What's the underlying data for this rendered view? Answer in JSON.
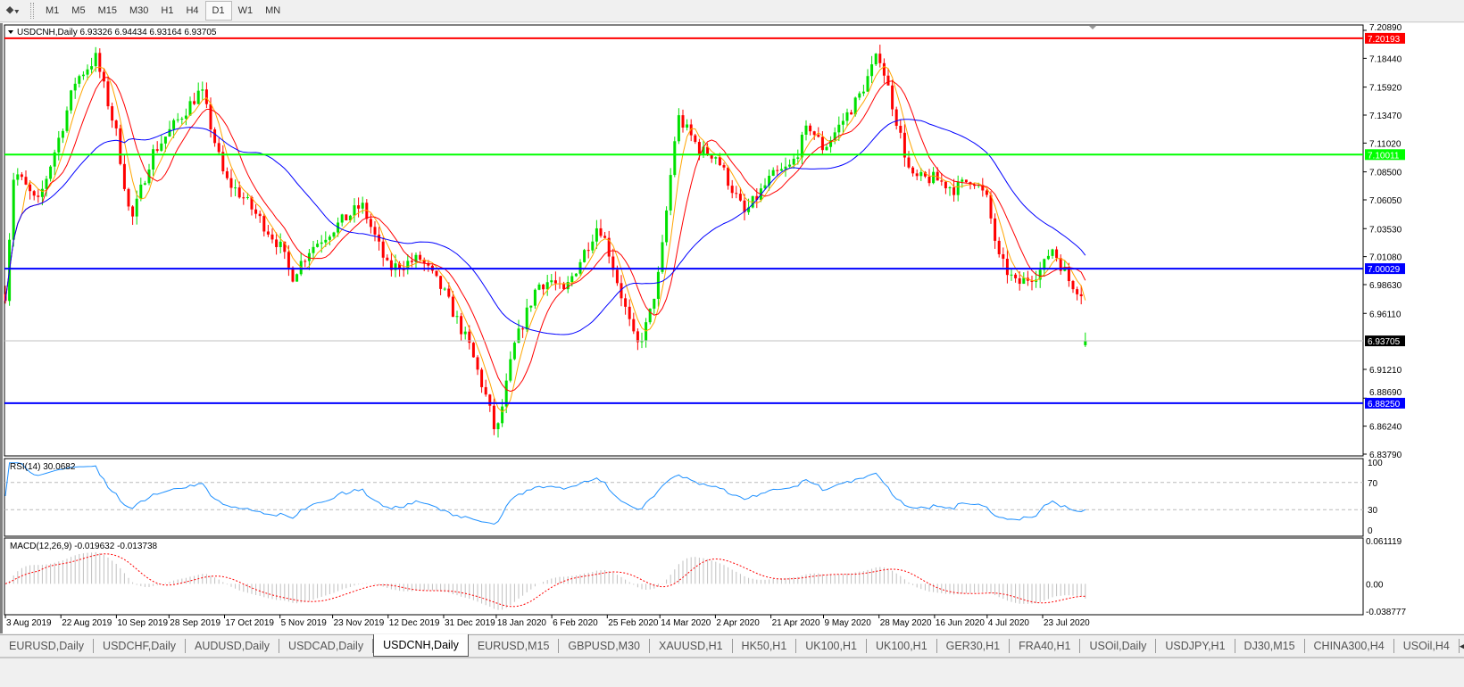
{
  "toolbar": {
    "timeframes": [
      "M1",
      "M5",
      "M15",
      "M30",
      "H1",
      "H4",
      "D1",
      "W1",
      "MN"
    ],
    "active": "D1"
  },
  "chart": {
    "header": "USDCNH,Daily  6.93326 6.94434 6.93164 6.93705",
    "symbol": "USDCNH",
    "period": "Daily",
    "ohlc": {
      "open": 6.93326,
      "high": 6.94434,
      "low": 6.93164,
      "close": 6.93705
    },
    "price_axis": [
      "7.20890",
      "7.18440",
      "7.15920",
      "7.13470",
      "7.11020",
      "7.08500",
      "7.06050",
      "7.03530",
      "7.01080",
      "6.98630",
      "6.96110",
      "6.91210",
      "6.88690",
      "6.86240",
      "6.83790"
    ],
    "price_range": [
      6.8379,
      7.2089
    ],
    "current_price": "6.93705",
    "hlines": [
      {
        "price": 7.20193,
        "label": "7.20193",
        "color": "#ff0000"
      },
      {
        "price": 7.10011,
        "label": "7.10011",
        "color": "#00ff00"
      },
      {
        "price": 7.00029,
        "label": "7.00029",
        "color": "#0000ff"
      },
      {
        "price": 6.8825,
        "label": "6.88250",
        "color": "#0000ff"
      }
    ],
    "colors": {
      "bull": "#00e000",
      "bear": "#ff0000",
      "ma_fast": "#ffa500",
      "ma_mid": "#ff0000",
      "ma_slow": "#0000ff",
      "rsi": "#1e90ff",
      "macd_signal": "#ff0000",
      "macd_hist": "#c0c0c0"
    },
    "date_axis": [
      "3 Aug 2019",
      "22 Aug 2019",
      "10 Sep 2019",
      "28 Sep 2019",
      "17 Oct 2019",
      "5 Nov 2019",
      "23 Nov 2019",
      "12 Dec 2019",
      "31 Dec 2019",
      "18 Jan 2020",
      "6 Feb 2020",
      "25 Feb 2020",
      "14 Mar 2020",
      "2 Apr 2020",
      "21 Apr 2020",
      "9 May 2020",
      "28 May 2020",
      "16 Jun 2020",
      "4 Jul 2020",
      "23 Jul 2020"
    ],
    "price_path": [
      [
        "2019-08-03",
        6.978
      ],
      [
        "2019-08-06",
        7.087
      ],
      [
        "2019-08-14",
        7.056
      ],
      [
        "2019-08-22",
        7.12
      ],
      [
        "2019-08-27",
        7.165
      ],
      [
        "2019-09-03",
        7.185
      ],
      [
        "2019-09-10",
        7.118
      ],
      [
        "2019-09-15",
        7.04
      ],
      [
        "2019-09-22",
        7.1
      ],
      [
        "2019-09-28",
        7.12
      ],
      [
        "2019-10-09",
        7.157
      ],
      [
        "2019-10-17",
        7.079
      ],
      [
        "2019-10-23",
        7.064
      ],
      [
        "2019-11-05",
        7.02
      ],
      [
        "2019-11-09",
        6.993
      ],
      [
        "2019-11-15",
        7.017
      ],
      [
        "2019-11-23",
        7.035
      ],
      [
        "2019-12-03",
        7.056
      ],
      [
        "2019-12-12",
        7.0
      ],
      [
        "2019-12-23",
        7.009
      ],
      [
        "2019-12-31",
        6.98
      ],
      [
        "2020-01-09",
        6.931
      ],
      [
        "2020-01-15",
        6.884
      ],
      [
        "2020-01-18",
        6.853
      ],
      [
        "2020-01-24",
        6.931
      ],
      [
        "2020-02-01",
        6.986
      ],
      [
        "2020-02-06",
        6.99
      ],
      [
        "2020-02-10",
        6.978
      ],
      [
        "2020-02-22",
        7.04
      ],
      [
        "2020-02-25",
        7.02
      ],
      [
        "2020-03-06",
        6.931
      ],
      [
        "2020-03-10",
        6.954
      ],
      [
        "2020-03-14",
        7.0
      ],
      [
        "2020-03-20",
        7.134
      ],
      [
        "2020-03-28",
        7.103
      ],
      [
        "2020-04-02",
        7.1
      ],
      [
        "2020-04-12",
        7.048
      ],
      [
        "2020-04-21",
        7.08
      ],
      [
        "2020-04-28",
        7.09
      ],
      [
        "2020-05-04",
        7.126
      ],
      [
        "2020-05-09",
        7.105
      ],
      [
        "2020-05-21",
        7.15
      ],
      [
        "2020-05-28",
        7.189
      ],
      [
        "2020-06-02",
        7.14
      ],
      [
        "2020-06-08",
        7.079
      ],
      [
        "2020-06-16",
        7.079
      ],
      [
        "2020-06-23",
        7.07
      ],
      [
        "2020-06-29",
        7.08
      ],
      [
        "2020-07-04",
        7.06
      ],
      [
        "2020-07-08",
        7.009
      ],
      [
        "2020-07-14",
        6.986
      ],
      [
        "2020-07-23",
        7.0
      ],
      [
        "2020-07-26",
        7.02
      ],
      [
        "2020-08-01",
        6.99
      ],
      [
        "2020-08-06",
        6.978
      ],
      [
        "2020-08-07",
        6.93705
      ]
    ]
  },
  "rsi": {
    "label": "RSI(14) 30.0682",
    "value": 30.0682,
    "levels": [
      "100",
      "70",
      "30",
      "0"
    ]
  },
  "macd": {
    "label": "MACD(12,26,9) -0.019632 -0.013738",
    "axis": [
      "0.061119",
      "0.00",
      "-0.038777"
    ],
    "range": [
      -0.038777,
      0.061119
    ]
  },
  "tabs": [
    "EURUSD,Daily",
    "USDCHF,Daily",
    "AUDUSD,Daily",
    "USDCAD,Daily",
    "USDCNH,Daily",
    "EURUSD,M15",
    "GBPUSD,M30",
    "XAUUSD,H1",
    "HK50,H1",
    "UK100,H1",
    "UK100,H1",
    "GER30,H1",
    "FRA40,H1",
    "USOil,Daily",
    "USDJPY,H1",
    "DJ30,M15",
    "CHINA300,H4",
    "USOil,H4"
  ],
  "active_tab": "USDCNH,Daily"
}
